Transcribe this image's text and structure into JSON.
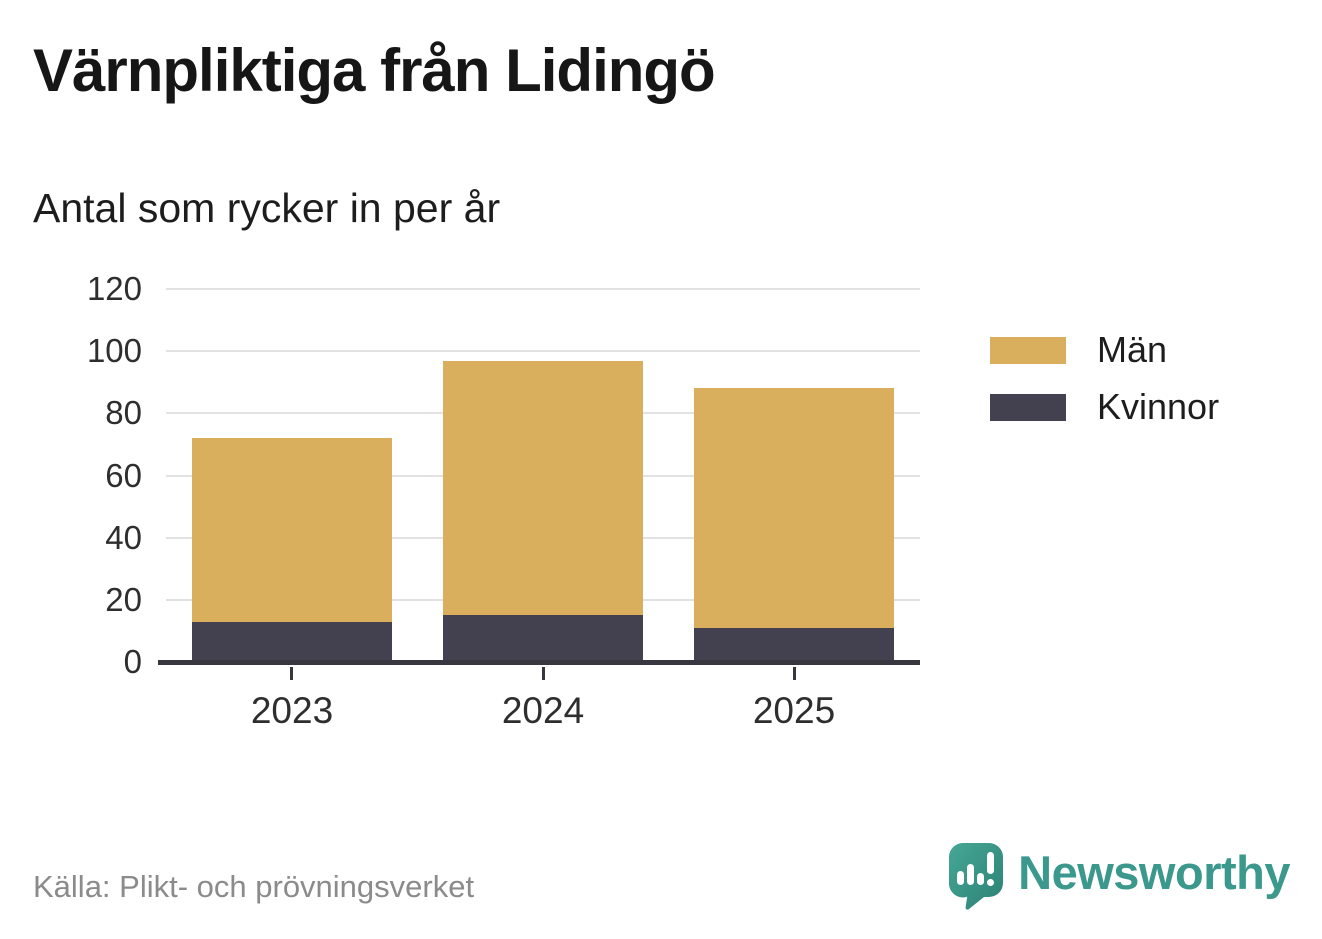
{
  "title": "Värnpliktiga från Lidingö",
  "subtitle": "Antal som rycker in per år",
  "source": "Källa: Plikt- och prövningsverket",
  "branding": {
    "wordmark": "Newsworthy",
    "teal": "#3b988d",
    "logo_icon": "bar-chart-speech-bubble-icon"
  },
  "chart_data": {
    "type": "bar",
    "variant": "stacked-column",
    "title": "Värnpliktiga från Lidingö",
    "subtitle": "Antal som rycker in per år",
    "categories": [
      "2023",
      "2024",
      "2025"
    ],
    "series": [
      {
        "name": "Män",
        "color": "#d9ae5c",
        "values": [
          59,
          82,
          77
        ]
      },
      {
        "name": "Kvinnor",
        "color": "#434050",
        "values": [
          13,
          15,
          11
        ]
      }
    ],
    "stacked_totals": [
      72,
      97,
      88
    ],
    "xlabel": "",
    "ylabel": "",
    "ylim": [
      0,
      120
    ],
    "yticks": [
      0,
      20,
      40,
      60,
      80,
      100,
      120
    ],
    "grid": true,
    "legend_position": "right",
    "axis_color": "#38363f",
    "gridline_color": "#e2e2e2"
  }
}
